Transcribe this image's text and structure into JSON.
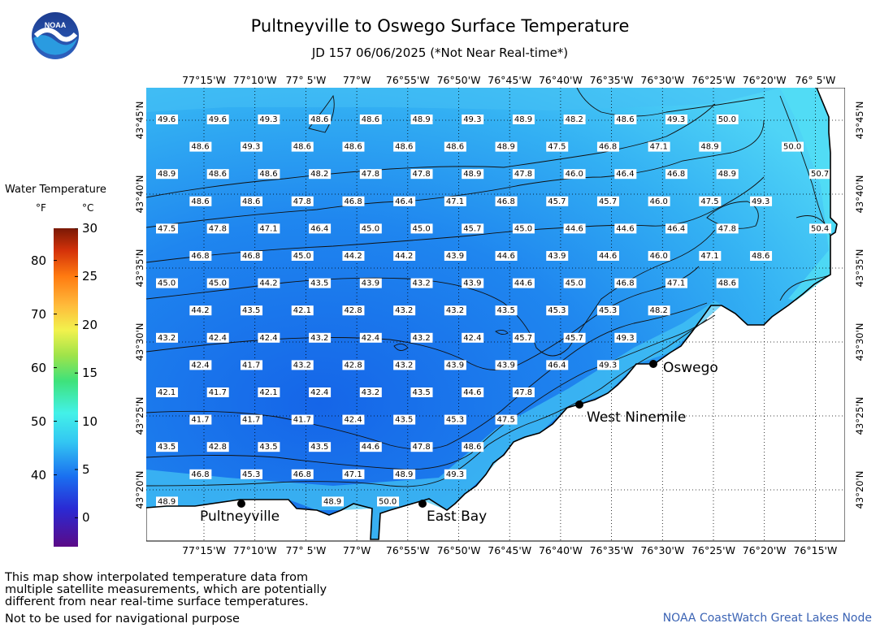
{
  "header": {
    "title": "Pultneyville to Oswego Surface Temperature",
    "subtitle": "JD 157 06/06/2025 (*Not Near Real-time*)"
  },
  "logo": {
    "icon": "noaa-logo",
    "text": "NOAA"
  },
  "legend": {
    "title": "Water Temperature",
    "unit_f": "°F",
    "unit_c": "°C",
    "f_ticks": [
      "40",
      "50",
      "60",
      "70",
      "80"
    ],
    "c_ticks": [
      "0",
      "5",
      "10",
      "15",
      "20",
      "25",
      "30"
    ],
    "f_values": [
      40,
      50,
      60,
      70,
      80
    ],
    "c_values": [
      0,
      5,
      10,
      15,
      20,
      25,
      30
    ],
    "c_range": [
      -3,
      30
    ]
  },
  "map": {
    "lon_labels": [
      "77°15'W",
      "77°10'W",
      "77° 5'W",
      "77°W",
      "76°55'W",
      "76°50'W",
      "76°45'W",
      "76°40'W",
      "76°35'W",
      "76°30'W",
      "76°25'W",
      "76°20'W",
      "76°15'W"
    ],
    "lon_top_last": "76° 5'W",
    "lat_labels": [
      "43°45'N",
      "43°40'N",
      "43°35'N",
      "43°30'N",
      "43°25'N",
      "43°20'N"
    ],
    "places": [
      {
        "name": "Oswego"
      },
      {
        "name": "West Ninemile"
      },
      {
        "name": "Pultneyville"
      },
      {
        "name": "East Bay"
      }
    ],
    "temperature_grid": [
      [
        "49.6",
        "49.6",
        "49.3",
        "48.6",
        "48.6",
        "48.9",
        "49.3",
        "48.9",
        "48.2",
        "48.6",
        "49.3",
        "50.0"
      ],
      [
        "48.6",
        "49.3",
        "48.6",
        "48.6",
        "48.6",
        "48.6",
        "48.9",
        "47.5",
        "46.8",
        "47.1",
        "48.9",
        "50.0"
      ],
      [
        "48.9",
        "48.6",
        "48.6",
        "48.2",
        "47.8",
        "47.8",
        "48.9",
        "47.8",
        "46.0",
        "46.4",
        "46.8",
        "48.9",
        "50.7"
      ],
      [
        "48.6",
        "48.6",
        "47.8",
        "46.8",
        "46.4",
        "47.1",
        "46.8",
        "45.7",
        "45.7",
        "46.0",
        "47.5",
        "49.3"
      ],
      [
        "47.5",
        "47.8",
        "47.1",
        "46.4",
        "45.0",
        "45.0",
        "45.7",
        "45.0",
        "44.6",
        "44.6",
        "46.4",
        "47.8",
        "50.4"
      ],
      [
        "46.8",
        "46.8",
        "45.0",
        "44.2",
        "44.2",
        "43.9",
        "44.6",
        "43.9",
        "44.6",
        "46.0",
        "47.1",
        "48.6"
      ],
      [
        "45.0",
        "45.0",
        "44.2",
        "43.5",
        "43.9",
        "43.2",
        "43.9",
        "44.6",
        "45.0",
        "46.8",
        "47.1",
        "48.6"
      ],
      [
        "44.2",
        "43.5",
        "42.1",
        "42.8",
        "43.2",
        "43.2",
        "43.5",
        "45.3",
        "45.3",
        "48.2"
      ],
      [
        "43.2",
        "42.4",
        "42.4",
        "43.2",
        "42.4",
        "43.2",
        "42.4",
        "45.7",
        "45.7",
        "49.3"
      ],
      [
        "42.4",
        "41.7",
        "43.2",
        "42.8",
        "43.2",
        "43.9",
        "43.9",
        "46.4",
        "49.3"
      ],
      [
        "42.1",
        "41.7",
        "42.1",
        "42.4",
        "43.2",
        "43.5",
        "44.6",
        "47.8"
      ],
      [
        "41.7",
        "41.7",
        "41.7",
        "42.4",
        "43.5",
        "45.3",
        "47.5"
      ],
      [
        "43.5",
        "42.8",
        "43.5",
        "43.5",
        "44.6",
        "47.8",
        "48.6"
      ],
      [
        "46.8",
        "45.3",
        "46.8",
        "47.1",
        "48.9",
        "49.3"
      ],
      [
        "48.9",
        "48.9",
        "50.0"
      ]
    ]
  },
  "footer": {
    "line1": "This map show interpolated temperature data from",
    "line2": "multiple satellite measurements, which are potentially",
    "line3": "different from near real-time surface temperatures.",
    "warning": "Not to be used for navigational purpose",
    "credit": "NOAA CoastWatch Great Lakes Node"
  }
}
